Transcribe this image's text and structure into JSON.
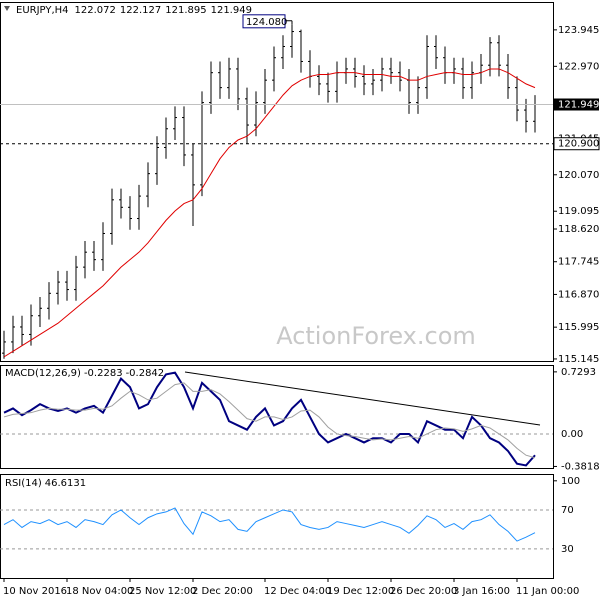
{
  "chart_data": [
    {
      "type": "ohlc",
      "symbol": "EURJPY,H4",
      "quote": [
        122.072,
        122.127,
        121.895,
        121.949
      ],
      "color": "#000000",
      "open": [
        115.3,
        115.6,
        116.0,
        115.8,
        116.3,
        116.5,
        116.9,
        117.2,
        117.0,
        117.6,
        118.0,
        117.8,
        118.5,
        119.4,
        119.2,
        118.9,
        119.5,
        120.1,
        120.8,
        121.3,
        121.6,
        120.6,
        119.8,
        122.0,
        122.8,
        122.4,
        122.9,
        122.1,
        121.4,
        122.0,
        122.6,
        123.2,
        123.5,
        123.9,
        123.1,
        122.7,
        122.5,
        122.3,
        122.8,
        122.9,
        122.7,
        122.5,
        122.6,
        122.9,
        122.8,
        122.6,
        122.0,
        122.4,
        123.5,
        123.2,
        122.8,
        122.9,
        122.4,
        122.8,
        123.0,
        123.6,
        123.0,
        122.4,
        121.8,
        121.5
      ],
      "high": [
        115.9,
        116.3,
        116.3,
        116.6,
        116.8,
        117.2,
        117.5,
        117.5,
        117.9,
        118.3,
        118.3,
        118.8,
        119.7,
        119.7,
        119.5,
        119.8,
        120.4,
        121.1,
        121.6,
        121.9,
        121.9,
        120.9,
        122.3,
        123.1,
        123.1,
        123.2,
        123.2,
        122.4,
        122.3,
        122.9,
        123.5,
        123.8,
        124.08,
        123.95,
        123.4,
        123.0,
        122.8,
        123.1,
        123.2,
        123.2,
        123.0,
        122.9,
        123.2,
        123.2,
        123.1,
        122.9,
        122.7,
        123.8,
        123.8,
        123.5,
        123.2,
        123.2,
        123.1,
        123.3,
        123.75,
        123.8,
        123.3,
        122.7,
        122.1,
        122.2
      ],
      "low": [
        115.15,
        115.3,
        115.5,
        115.5,
        116.0,
        116.2,
        116.6,
        116.7,
        116.7,
        117.3,
        117.5,
        117.5,
        118.2,
        118.9,
        118.6,
        118.6,
        119.2,
        119.8,
        120.5,
        121.0,
        120.3,
        118.7,
        119.5,
        121.7,
        122.1,
        122.1,
        121.8,
        120.9,
        121.1,
        121.7,
        122.3,
        122.9,
        123.2,
        122.8,
        122.4,
        122.2,
        122.0,
        122.0,
        122.5,
        122.4,
        122.2,
        122.2,
        122.3,
        122.5,
        122.3,
        121.7,
        121.7,
        122.1,
        122.9,
        122.5,
        122.5,
        122.1,
        122.1,
        122.5,
        122.7,
        122.7,
        122.1,
        121.5,
        121.2,
        121.2
      ],
      "close": [
        115.6,
        116.0,
        115.8,
        116.3,
        116.5,
        116.9,
        117.2,
        117.0,
        117.6,
        118.0,
        117.8,
        118.5,
        119.4,
        119.2,
        118.9,
        119.5,
        120.1,
        120.8,
        121.3,
        121.6,
        120.6,
        119.8,
        122.0,
        122.8,
        122.4,
        122.9,
        122.1,
        121.4,
        122.0,
        122.6,
        123.2,
        123.5,
        123.9,
        123.1,
        122.7,
        122.5,
        122.3,
        122.8,
        122.9,
        122.7,
        122.5,
        122.6,
        122.9,
        122.8,
        122.6,
        122.0,
        122.4,
        123.5,
        123.2,
        122.8,
        122.9,
        122.4,
        122.8,
        123.0,
        123.6,
        123.0,
        122.4,
        121.8,
        121.5,
        121.949
      ],
      "ma": {
        "color": "#e00000",
        "values": [
          115.2,
          115.35,
          115.5,
          115.65,
          115.8,
          115.95,
          116.1,
          116.3,
          116.5,
          116.7,
          116.9,
          117.1,
          117.35,
          117.6,
          117.8,
          118.0,
          118.25,
          118.55,
          118.85,
          119.1,
          119.3,
          119.4,
          119.7,
          120.1,
          120.5,
          120.8,
          121.0,
          121.1,
          121.3,
          121.6,
          121.9,
          122.2,
          122.45,
          122.6,
          122.7,
          122.75,
          122.75,
          122.8,
          122.8,
          122.8,
          122.75,
          122.75,
          122.75,
          122.7,
          122.7,
          122.6,
          122.6,
          122.7,
          122.75,
          122.8,
          122.8,
          122.75,
          122.75,
          122.8,
          122.9,
          122.9,
          122.8,
          122.65,
          122.5,
          122.4
        ]
      },
      "ylim": [
        115.09,
        124.69
      ],
      "yticks": [
        123.945,
        {
          "value": 122.97,
          "label": "122.970"
        },
        121.045,
        {
          "value": 120.07,
          "label": "120.070"
        },
        119.095,
        {
          "value": 118.62,
          "label": "118.620"
        },
        117.745,
        {
          "value": 116.87,
          "label": "116.870"
        },
        115.995,
        115.145
      ],
      "high_label": {
        "value": 124.08,
        "label": "124.080"
      },
      "last": 121.949,
      "level": {
        "value": 120.9,
        "label": "120.900"
      },
      "xticks": [
        {
          "value": 0,
          "label": "10 Nov 2016"
        },
        {
          "value": 7,
          "label": "18 Nov 04:00"
        },
        {
          "value": 14,
          "label": "25 Nov 12:00"
        },
        {
          "value": 21,
          "label": "2 Dec 20:00"
        },
        {
          "value": 29,
          "label": "12 Dec 04:00"
        },
        {
          "value": 36,
          "label": "19 Dec 12:00"
        },
        {
          "value": 43,
          "label": "26 Dec 20:00"
        },
        {
          "value": 50,
          "label": "3 Jan 16:00"
        },
        {
          "value": 57,
          "label": "11 Jan 00:00"
        }
      ],
      "watermark": "ActionForex.com"
    },
    {
      "type": "line",
      "label": "MACD(12,26,9)",
      "readings": [
        -0.2283,
        -0.2842
      ],
      "series": [
        {
          "color": "#000080",
          "values": [
            0.25,
            0.3,
            0.22,
            0.28,
            0.35,
            0.3,
            0.27,
            0.3,
            0.25,
            0.3,
            0.33,
            0.25,
            0.45,
            0.65,
            0.55,
            0.3,
            0.35,
            0.55,
            0.7,
            0.72,
            0.55,
            0.3,
            0.6,
            0.5,
            0.4,
            0.15,
            0.1,
            0.05,
            0.2,
            0.3,
            0.1,
            0.15,
            0.3,
            0.4,
            0.2,
            0.0,
            -0.1,
            -0.05,
            0.0,
            -0.05,
            -0.1,
            -0.05,
            -0.05,
            -0.1,
            0.0,
            0.0,
            -0.1,
            0.15,
            0.1,
            0.05,
            0.05,
            -0.05,
            0.2,
            0.1,
            -0.05,
            -0.1,
            -0.2,
            -0.35,
            -0.37,
            -0.25
          ]
        },
        {
          "color": "#a0a0a0",
          "values": [
            0.2,
            0.23,
            0.24,
            0.25,
            0.28,
            0.3,
            0.29,
            0.29,
            0.28,
            0.28,
            0.3,
            0.29,
            0.33,
            0.42,
            0.5,
            0.46,
            0.4,
            0.42,
            0.5,
            0.58,
            0.6,
            0.5,
            0.5,
            0.52,
            0.47,
            0.38,
            0.28,
            0.18,
            0.15,
            0.2,
            0.2,
            0.17,
            0.2,
            0.27,
            0.28,
            0.2,
            0.08,
            0.0,
            -0.02,
            -0.03,
            -0.05,
            -0.07,
            -0.06,
            -0.07,
            -0.05,
            -0.03,
            -0.05,
            0.0,
            0.05,
            0.07,
            0.06,
            0.03,
            0.06,
            0.1,
            0.07,
            0.0,
            -0.07,
            -0.17,
            -0.25,
            -0.28
          ]
        }
      ],
      "ylim": [
        -0.4,
        0.81
      ],
      "yticks": [
        0.7293,
        {
          "value": 0,
          "label": "0.00"
        },
        -0.3818
      ]
    },
    {
      "type": "line",
      "label": "RSI(14)",
      "readings": [
        46.6131
      ],
      "series": [
        {
          "color": "#1e90ff",
          "values": [
            55,
            60,
            52,
            58,
            56,
            60,
            55,
            58,
            52,
            60,
            58,
            55,
            65,
            70,
            62,
            55,
            62,
            66,
            68,
            72,
            56,
            45,
            68,
            64,
            58,
            60,
            50,
            48,
            58,
            62,
            66,
            70,
            68,
            55,
            52,
            50,
            52,
            58,
            56,
            54,
            52,
            55,
            58,
            55,
            52,
            46,
            54,
            64,
            60,
            52,
            56,
            50,
            58,
            60,
            65,
            55,
            48,
            38,
            42,
            46.6
          ]
        }
      ],
      "ylim": [
        0,
        107
      ],
      "yticks": [
        100,
        70,
        30
      ]
    }
  ]
}
